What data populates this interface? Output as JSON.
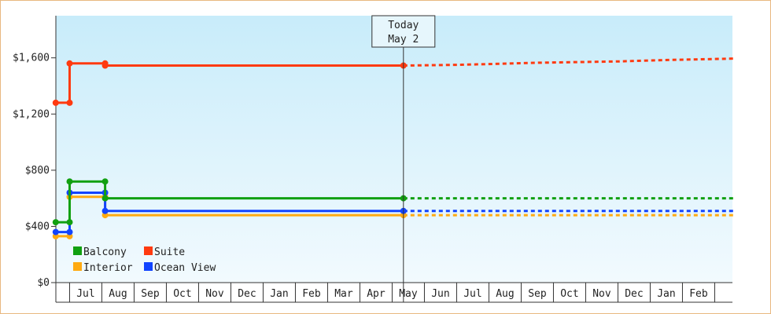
{
  "chart_data": {
    "type": "line",
    "title": "",
    "xlabel": "",
    "ylabel": "",
    "ylim": [
      0,
      1900
    ],
    "y_ticks": [
      0,
      400,
      800,
      1200,
      1600
    ],
    "y_tick_labels": [
      "$0",
      "$400",
      "$800",
      "$1,200",
      "$1,600"
    ],
    "x_tick_labels": [
      "Jul",
      "Aug",
      "Sep",
      "Oct",
      "Nov",
      "Dec",
      "Jan",
      "Feb",
      "Mar",
      "Apr",
      "May",
      "Jun",
      "Jul",
      "Aug",
      "Sep",
      "Oct",
      "Nov",
      "Dec",
      "Jan",
      "Feb"
    ],
    "x_range_months": [
      0,
      21.1
    ],
    "grid": false,
    "legend_position": "bottom-left",
    "today_marker": {
      "month": 10.8,
      "line1": "Today",
      "line2": "May 2"
    },
    "series": [
      {
        "name": "Balcony",
        "color": "#11a011",
        "points": [
          [
            0.02,
            430
          ],
          [
            0.45,
            430
          ],
          [
            0.45,
            720
          ],
          [
            1.55,
            720
          ],
          [
            1.55,
            600
          ],
          [
            10.8,
            600
          ]
        ],
        "forecast": [
          [
            10.8,
            600
          ],
          [
            21.1,
            600
          ]
        ]
      },
      {
        "name": "Suite",
        "color": "#ff3a10",
        "points": [
          [
            0.02,
            1280
          ],
          [
            0.45,
            1280
          ],
          [
            0.45,
            1560
          ],
          [
            1.55,
            1560
          ],
          [
            1.55,
            1545
          ],
          [
            10.8,
            1545
          ]
        ],
        "forecast": [
          [
            10.8,
            1545
          ],
          [
            12.5,
            1550
          ],
          [
            15.0,
            1565
          ],
          [
            17.5,
            1575
          ],
          [
            19.0,
            1585
          ],
          [
            21.1,
            1595
          ]
        ]
      },
      {
        "name": "Interior",
        "color": "#ffaa11",
        "points": [
          [
            0.02,
            330
          ],
          [
            0.45,
            330
          ],
          [
            0.45,
            610
          ],
          [
            1.55,
            610
          ],
          [
            1.55,
            480
          ],
          [
            10.8,
            480
          ]
        ],
        "forecast": [
          [
            10.8,
            480
          ],
          [
            21.1,
            480
          ]
        ]
      },
      {
        "name": "Ocean View",
        "color": "#1144ff",
        "points": [
          [
            0.02,
            360
          ],
          [
            0.45,
            360
          ],
          [
            0.45,
            640
          ],
          [
            1.55,
            640
          ],
          [
            1.55,
            510
          ],
          [
            10.8,
            510
          ]
        ],
        "forecast": [
          [
            10.8,
            510
          ],
          [
            21.1,
            510
          ]
        ]
      }
    ],
    "legend": [
      {
        "name": "Balcony",
        "color": "#11a011"
      },
      {
        "name": "Suite",
        "color": "#ff3a10"
      },
      {
        "name": "Interior",
        "color": "#ffaa11"
      },
      {
        "name": "Ocean View",
        "color": "#1144ff"
      }
    ]
  }
}
